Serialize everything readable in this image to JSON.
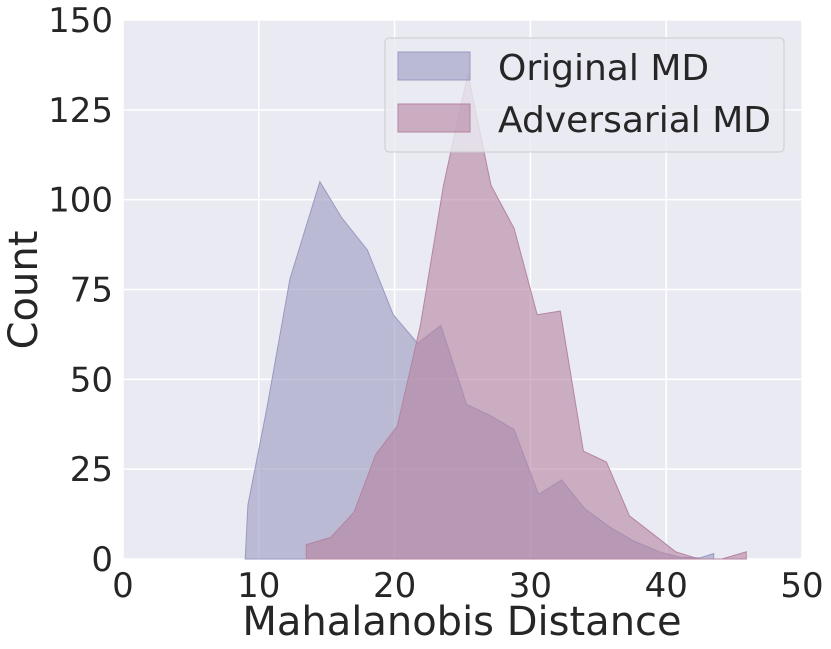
{
  "chart_data": {
    "type": "area",
    "title": "",
    "xlabel": "Mahalanobis Distance",
    "ylabel": "Count",
    "xlim": [
      0,
      50
    ],
    "ylim": [
      0,
      150
    ],
    "xticks": [
      0,
      10,
      20,
      30,
      40,
      50
    ],
    "yticks": [
      0,
      25,
      50,
      75,
      100,
      125,
      150
    ],
    "grid": true,
    "legend_position": "top-right",
    "series": [
      {
        "name": "Original MD",
        "color": "#9999c2",
        "x": [
          9,
          9.2,
          10.6,
          12.3,
          14.5,
          16.1,
          18.0,
          19.9,
          21.7,
          23.4,
          25.3,
          27.0,
          28.8,
          30.6,
          32.3,
          34.0,
          35.8,
          37.6,
          39.5,
          41.0,
          42.5,
          43.5
        ],
        "values": [
          0,
          15,
          42,
          78,
          105,
          95,
          86,
          68,
          60,
          65,
          43,
          40,
          36,
          18,
          22,
          14,
          9,
          5,
          2,
          0.5,
          0.3,
          1.5
        ]
      },
      {
        "name": "Adversarial MD",
        "color": "#b584a1",
        "x": [
          13.5,
          13.5,
          15.3,
          17.0,
          18.6,
          20.2,
          21.9,
          23.6,
          25.4,
          27.1,
          28.8,
          30.5,
          32.2,
          33.9,
          35.6,
          37.3,
          39.0,
          40.7,
          42.4,
          44.1,
          45.9
        ],
        "values": [
          0,
          4,
          6,
          13,
          29,
          37,
          65,
          104,
          135,
          104,
          92,
          68,
          69,
          30,
          27,
          12,
          7,
          2,
          0,
          0,
          2
        ]
      }
    ]
  }
}
